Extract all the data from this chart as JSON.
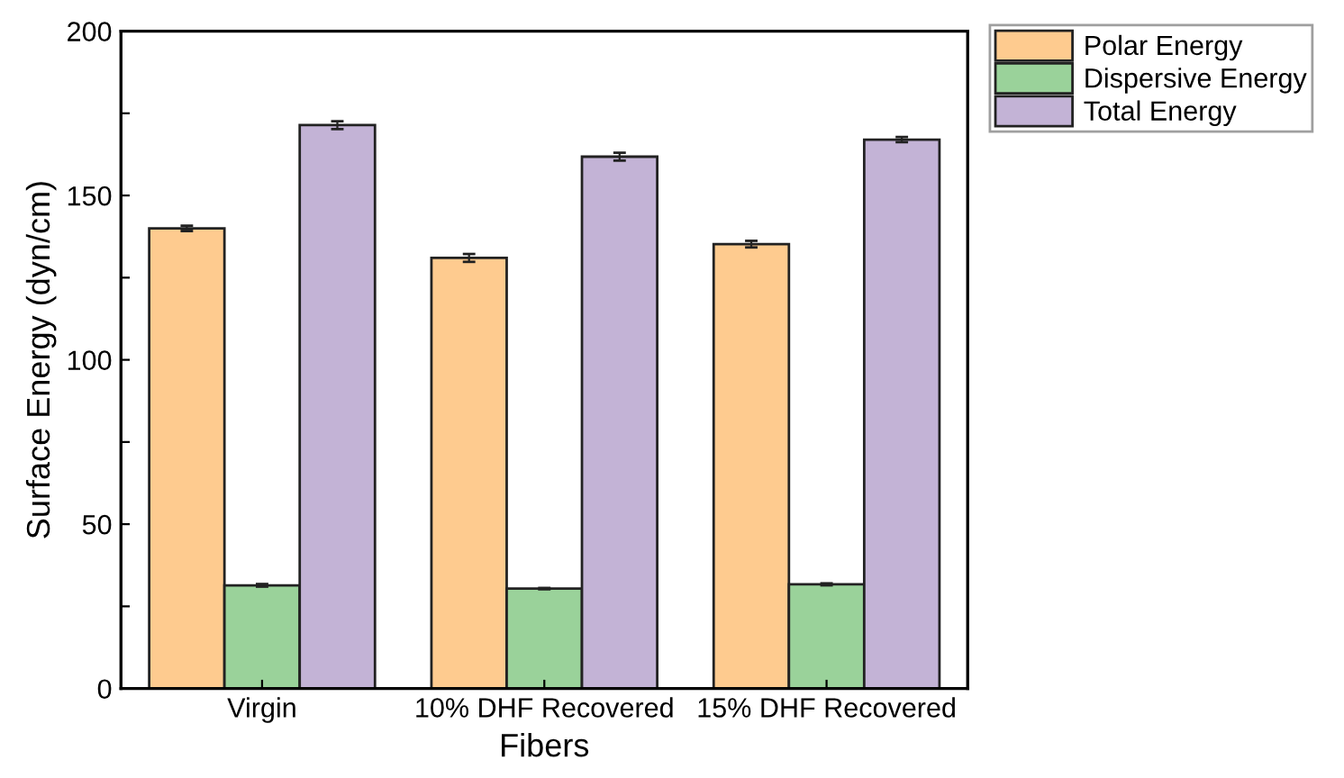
{
  "chart_data": {
    "type": "bar",
    "xlabel": "Fibers",
    "ylabel": "Surface Energy (dyn/cm)",
    "categories": [
      "Virgin",
      "10% DHF Recovered",
      "15% DHF Recovered"
    ],
    "series": [
      {
        "name": "Polar Energy",
        "color": "#fecb8f",
        "values": [
          140,
          131,
          135.2
        ],
        "errors": [
          0.8,
          1.2,
          1.0
        ]
      },
      {
        "name": "Dispersive Energy",
        "color": "#9ad29a",
        "values": [
          31.4,
          30.4,
          31.7
        ],
        "errors": [
          0.4,
          0.2,
          0.3
        ]
      },
      {
        "name": "Total Energy",
        "color": "#c3b3d6",
        "values": [
          171.4,
          161.8,
          167
        ],
        "errors": [
          1.2,
          1.2,
          0.8
        ]
      }
    ],
    "ylim": [
      0,
      200
    ],
    "yticks": [
      0,
      {
        "value": 25,
        "label": null
      },
      50,
      {
        "value": 75,
        "label": null
      },
      100,
      {
        "value": 125,
        "label": null
      },
      150,
      {
        "value": 175,
        "label": null
      },
      200
    ],
    "grid": false,
    "legend": "top right"
  }
}
